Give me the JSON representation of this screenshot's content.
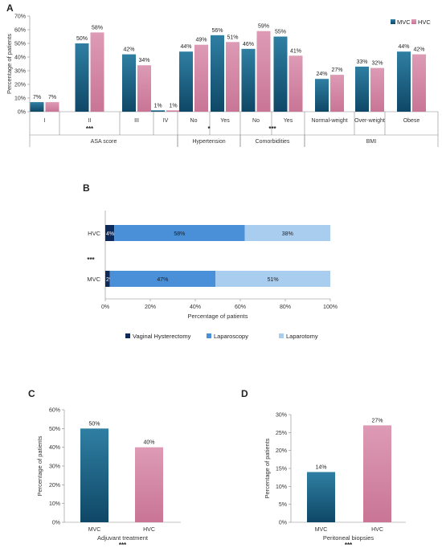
{
  "colors": {
    "MVC": "#1b5f80",
    "HVC": "#d48aa6",
    "vaginal": "#0e2a5a",
    "laparoscopy": "#4a90d9",
    "laparotomy": "#a9cdee"
  },
  "chart_data": [
    {
      "panel": "A",
      "type": "bar",
      "ylabel": "Percentage of patients",
      "ylim": [
        0,
        70
      ],
      "yticks": [
        "0%",
        "10%",
        "20%",
        "30%",
        "40%",
        "50%",
        "60%",
        "70%"
      ],
      "legend": [
        "MVC",
        "HVC"
      ],
      "legend_position": "top-right",
      "categories": [
        "I",
        "II",
        "III",
        "IV",
        "No",
        "Yes",
        "No",
        "Yes",
        "Normal-weight",
        "Over-weight",
        "Obese"
      ],
      "series": [
        {
          "name": "MVC",
          "values": [
            7,
            50,
            42,
            1,
            44,
            56,
            46,
            55,
            24,
            33,
            44
          ],
          "labels": [
            "7%",
            "50%",
            "42%",
            "1%",
            "44%",
            "56%",
            "46%",
            "55%",
            "24%",
            "33%",
            "44%"
          ]
        },
        {
          "name": "HVC",
          "values": [
            7,
            58,
            34,
            1,
            49,
            51,
            59,
            41,
            27,
            32,
            42
          ],
          "labels": [
            "7%",
            "58%",
            "34%",
            "1%",
            "49%",
            "51%",
            "59%",
            "41%",
            "27%",
            "32%",
            "42%"
          ]
        }
      ],
      "groups": [
        {
          "label": "ASA score",
          "stars": "***"
        },
        {
          "label": "Hypertension",
          "stars": "*"
        },
        {
          "label": "Comorbidities",
          "stars": "***"
        },
        {
          "label": "BMI",
          "stars": ""
        }
      ]
    },
    {
      "panel": "B",
      "type": "bar",
      "orientation": "horizontal-stacked",
      "xlabel": "Percentage of patients",
      "xticks": [
        "0%",
        "20%",
        "40%",
        "60%",
        "80%",
        "100%"
      ],
      "categories": [
        "HVC",
        "MVC"
      ],
      "stars": "***",
      "series": [
        {
          "name": "Vaginal Hysterectomy",
          "values": [
            4,
            2
          ],
          "labels": [
            "4%",
            "2%"
          ]
        },
        {
          "name": "Laparoscopy",
          "values": [
            58,
            47
          ],
          "labels": [
            "58%",
            "47%"
          ]
        },
        {
          "name": "Laparotomy",
          "values": [
            38,
            51
          ],
          "labels": [
            "38%",
            "51%"
          ]
        }
      ],
      "legend_position": "bottom"
    },
    {
      "panel": "C",
      "type": "bar",
      "ylabel": "Percentage of patients",
      "xlabel": "Adjuvant treatment",
      "stars": "***",
      "ylim": [
        0,
        60
      ],
      "yticks": [
        "0%",
        "10%",
        "20%",
        "30%",
        "40%",
        "50%",
        "60%"
      ],
      "categories": [
        "MVC",
        "HVC"
      ],
      "values": [
        50,
        40
      ],
      "labels": [
        "50%",
        "40%"
      ]
    },
    {
      "panel": "D",
      "type": "bar",
      "ylabel": "Percentage of patients",
      "xlabel": "Peritoneal biopsies",
      "stars": "***",
      "ylim": [
        0,
        30
      ],
      "yticks": [
        "0%",
        "5%",
        "10%",
        "15%",
        "20%",
        "25%",
        "30%"
      ],
      "categories": [
        "MVC",
        "HVC"
      ],
      "values": [
        14,
        27
      ],
      "labels": [
        "14%",
        "27%"
      ]
    }
  ]
}
